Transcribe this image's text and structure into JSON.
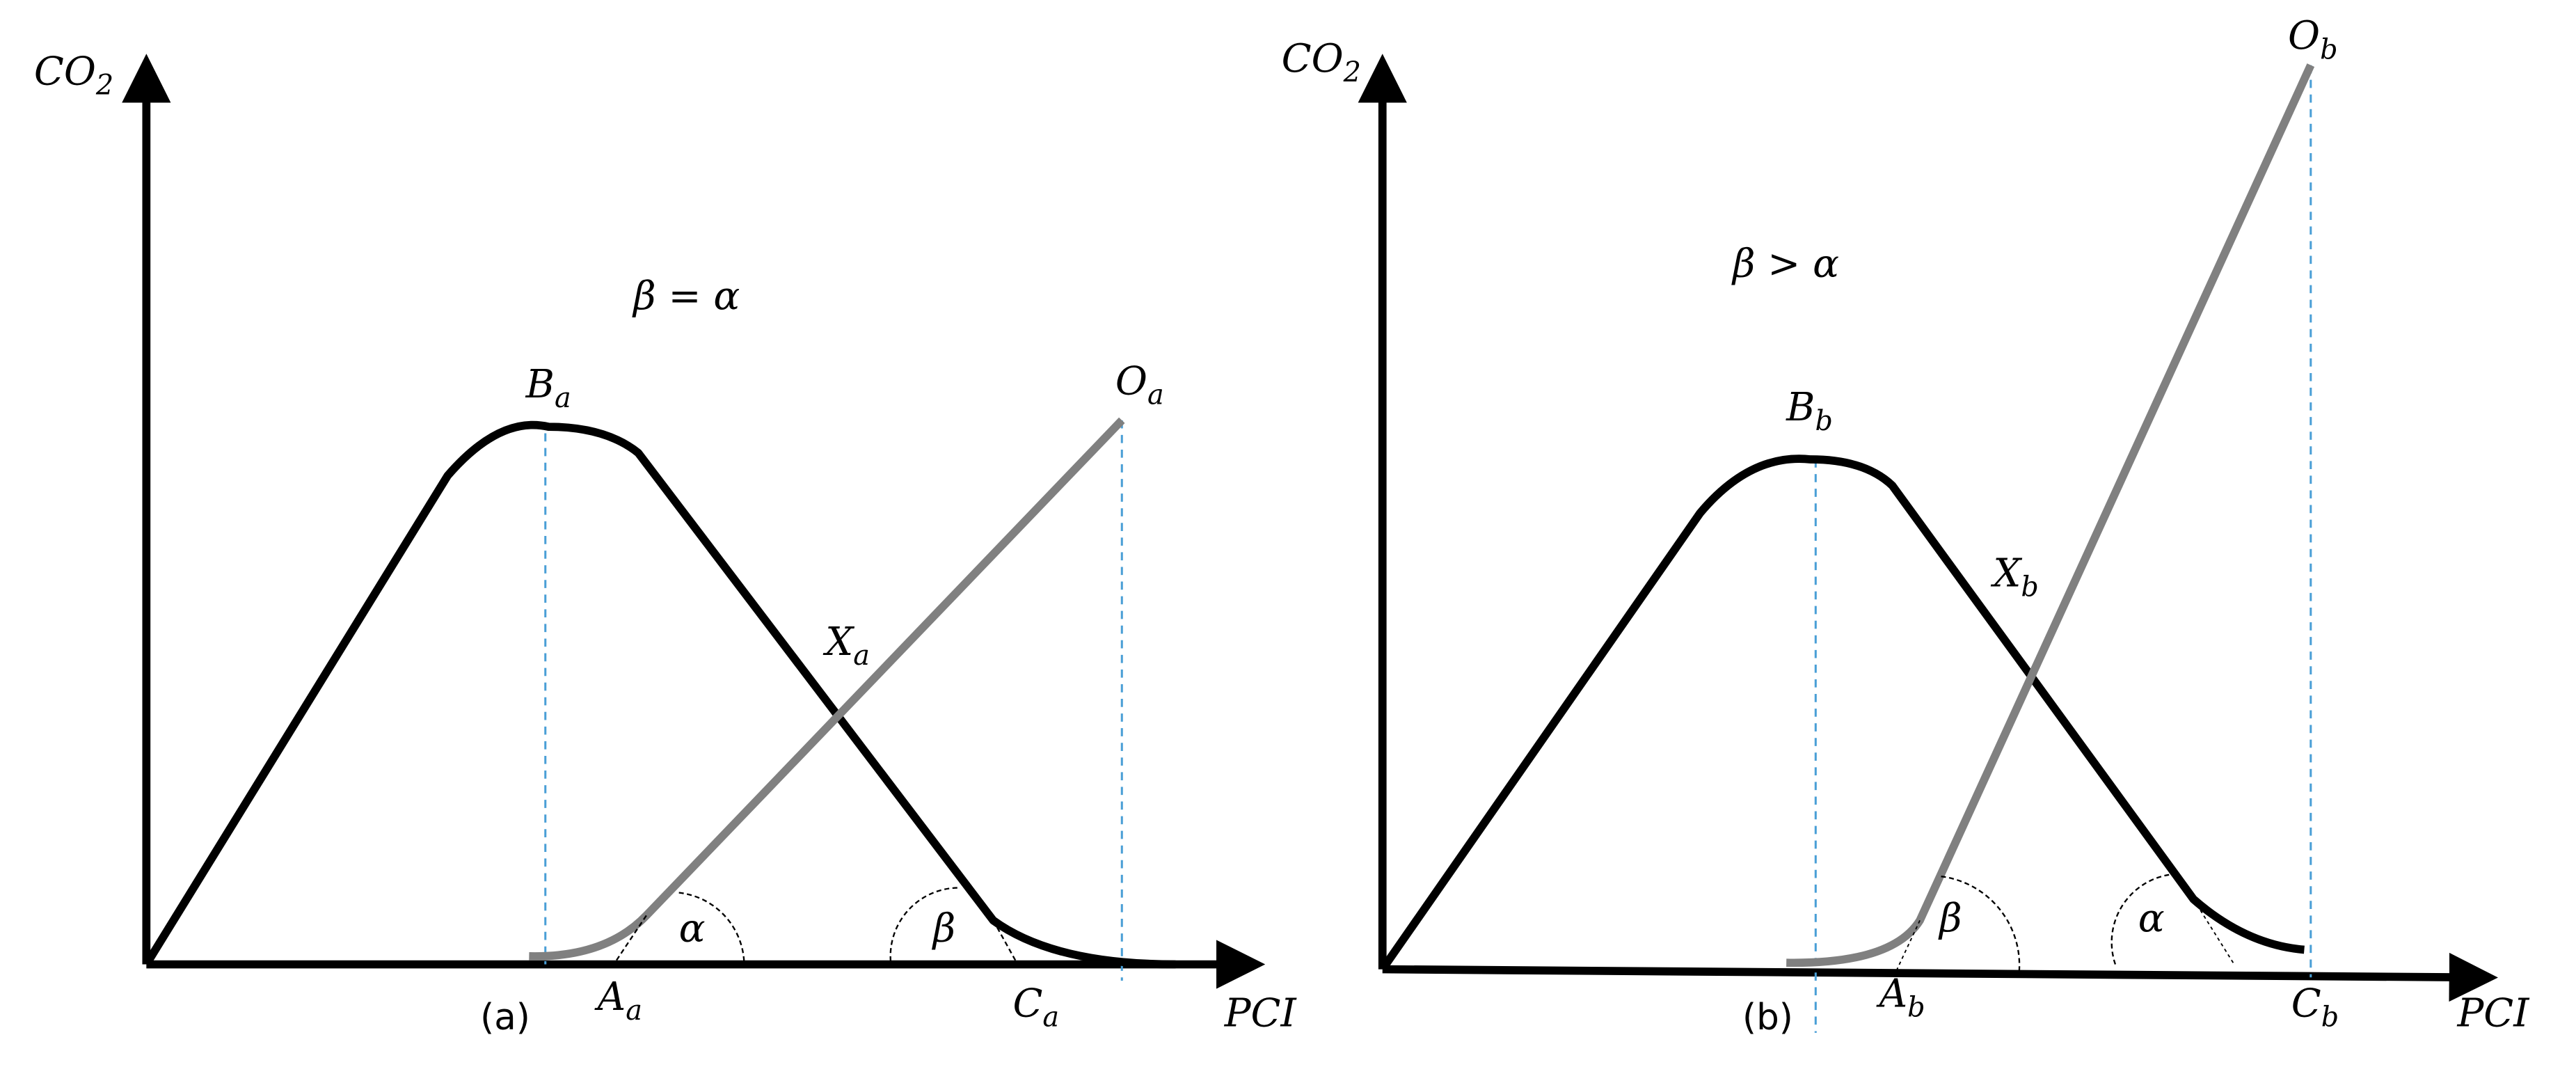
{
  "panels": [
    {
      "tag": "(a)",
      "y_axis": {
        "base": "CO",
        "sub": "2"
      },
      "x_axis": "PCI",
      "relation": "β = α",
      "points": {
        "B": {
          "base": "B",
          "sub": "a"
        },
        "O": {
          "base": "O",
          "sub": "a"
        },
        "X": {
          "base": "X",
          "sub": "a"
        },
        "A": {
          "base": "A",
          "sub": "a"
        },
        "C": {
          "base": "C",
          "sub": "a"
        }
      },
      "angle_at_A": "α",
      "angle_at_C": "β"
    },
    {
      "tag": "(b)",
      "y_axis": {
        "base": "CO",
        "sub": "2"
      },
      "x_axis": "PCI",
      "relation": "β > α",
      "points": {
        "B": {
          "base": "B",
          "sub": "b"
        },
        "O": {
          "base": "O",
          "sub": "b"
        },
        "X": {
          "base": "X",
          "sub": "b"
        },
        "A": {
          "base": "A",
          "sub": "b"
        },
        "C": {
          "base": "C",
          "sub": "b"
        }
      },
      "angle_at_A": "β",
      "angle_at_C": "α"
    }
  ]
}
